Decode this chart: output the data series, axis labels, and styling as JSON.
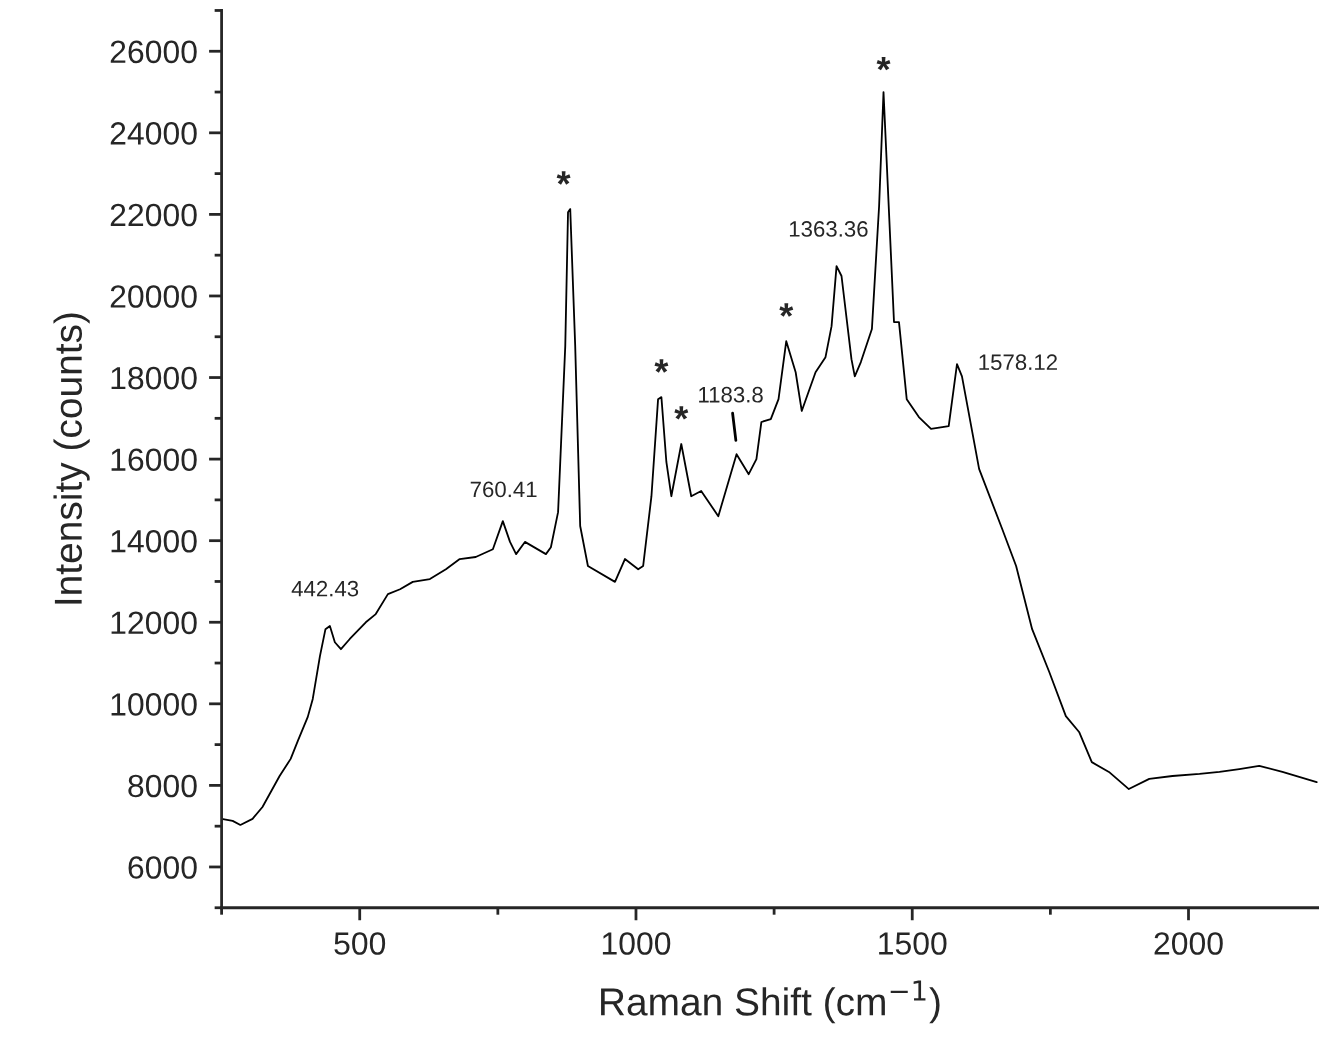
{
  "chart_data": {
    "type": "line",
    "xlabel": "Raman Shift (cm$^{−1}$)",
    "ylabel": "Intensity (counts)",
    "x": [
      250,
      270,
      284,
      306,
      324,
      355,
      375,
      388,
      406,
      415,
      428,
      438,
      446,
      455,
      466,
      482,
      511,
      529,
      551,
      573,
      596,
      627,
      656,
      681,
      710,
      741,
      759,
      772,
      783,
      799,
      837,
      846,
      859,
      872,
      877,
      881,
      890,
      899,
      913,
      962,
      980,
      1004,
      1013,
      1028,
      1040,
      1046,
      1055,
      1064,
      1082,
      1100,
      1118,
      1149,
      1182,
      1204,
      1218,
      1227,
      1244,
      1258,
      1272,
      1289,
      1300,
      1325,
      1343,
      1354,
      1363,
      1372,
      1390,
      1396,
      1407,
      1427,
      1440,
      1448,
      1467,
      1476,
      1490,
      1512,
      1534,
      1566,
      1581,
      1590,
      1621,
      1663,
      1688,
      1717,
      1748,
      1778,
      1802,
      1825,
      1856,
      1892,
      1929,
      1971,
      2020,
      2056,
      2092,
      2128,
      2170,
      2232
    ],
    "series": [
      {
        "color": "#000000",
        "values": [
          7180,
          7130,
          7030,
          7180,
          7470,
          8230,
          8650,
          9090,
          9680,
          10120,
          11170,
          11830,
          11910,
          11510,
          11340,
          11590,
          12000,
          12200,
          12690,
          12810,
          12990,
          13060,
          13300,
          13550,
          13600,
          13790,
          14480,
          13970,
          13670,
          13970,
          13670,
          13840,
          14700,
          18770,
          22050,
          22130,
          18770,
          14360,
          13380,
          12990,
          13550,
          13300,
          13380,
          15090,
          17470,
          17520,
          15930,
          15090,
          16370,
          15090,
          15220,
          14600,
          16120,
          15630,
          16000,
          16910,
          16980,
          17470,
          18890,
          18130,
          17180,
          18130,
          18500,
          19260,
          20730,
          20490,
          18450,
          18030,
          18380,
          19190,
          22200,
          25000,
          19360,
          19360,
          17470,
          17030,
          16740,
          16810,
          18330,
          18030,
          15760,
          14280,
          13380,
          11830,
          10780,
          9700,
          9310,
          8570,
          8330,
          7910,
          8160,
          8230,
          8280,
          8330,
          8400,
          8480,
          8330,
          8080
        ]
      }
    ],
    "xlim": [
      250,
      2235
    ],
    "xticks": [
      {
        "value": 250,
        "label": null
      },
      500,
      {
        "value": 750,
        "label": null
      },
      1000,
      {
        "value": 1250,
        "label": null
      },
      1500,
      {
        "value": 1750,
        "label": null
      },
      2000
    ],
    "ylim": [
      5000,
      27000
    ],
    "yticks": [
      {
        "value": 5000,
        "label": null
      },
      6000,
      {
        "value": 7000,
        "label": null
      },
      8000,
      {
        "value": 9000,
        "label": null
      },
      10000,
      {
        "value": 11000,
        "label": null
      },
      12000,
      {
        "value": 13000,
        "label": null
      },
      14000,
      {
        "value": 15000,
        "label": null
      },
      16000,
      {
        "value": 17000,
        "label": null
      },
      18000,
      {
        "value": 19000,
        "label": null
      },
      20000,
      {
        "value": 21000,
        "label": null
      },
      22000,
      {
        "value": 23000,
        "label": null
      },
      24000,
      {
        "value": 25000,
        "label": null
      },
      26000,
      {
        "value": 27000,
        "label": null
      }
    ],
    "grid": false,
    "marker": "none",
    "line_style": "solid",
    "annotations": [
      {
        "text": "442.43",
        "x": 442.43,
        "y": 11910
      },
      {
        "text": "760.41",
        "x": 760.41,
        "y": 14480
      },
      {
        "text": "*",
        "x": 879,
        "y": 22130
      },
      {
        "text": "*",
        "x": 1046,
        "y": 17520
      },
      {
        "text": "*",
        "x": 1082,
        "y": 16370
      },
      {
        "text": "1183.8",
        "x": 1183.8,
        "y": 16120
      },
      {
        "text": "*",
        "x": 1272,
        "y": 18890
      },
      {
        "text": "1363.36",
        "x": 1363.36,
        "y": 20730
      },
      {
        "text": "*",
        "x": 1448,
        "y": 25000
      },
      {
        "text": "1578.12",
        "x": 1578.12,
        "y": 18330
      }
    ]
  }
}
